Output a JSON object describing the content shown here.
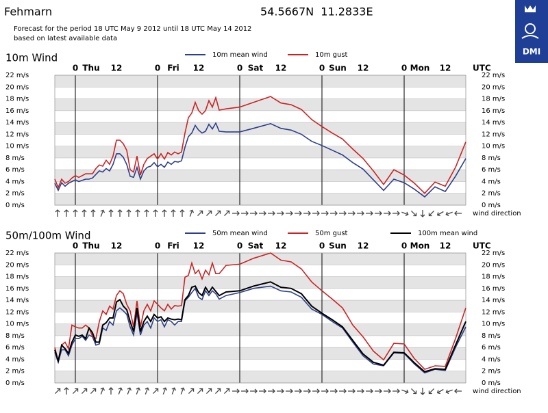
{
  "header": {
    "title": "Fehmarn",
    "coordinates": "54.5667N  11.2833E",
    "period": "Forecast for the period 18 UTC May 9 2012 until 18 UTC May 14 2012",
    "note": "based on latest available data",
    "logo": "DMI"
  },
  "chart_data": [
    {
      "type": "line",
      "title": "10m Wind",
      "x": [
        0,
        1,
        2,
        3,
        4,
        5,
        6,
        7,
        8,
        9,
        10,
        11,
        12,
        13,
        14,
        15,
        16,
        17,
        18,
        19,
        20,
        21,
        22,
        23,
        24,
        25,
        26,
        27,
        28,
        29,
        30,
        31,
        32,
        33,
        34,
        35,
        36,
        37,
        38,
        39,
        40,
        41,
        42,
        43,
        44,
        45,
        46,
        47,
        48,
        50,
        54,
        58,
        63,
        66,
        69,
        72,
        75,
        78,
        81,
        84,
        87,
        90,
        93,
        96,
        99,
        102,
        105,
        108,
        111,
        114,
        117,
        120
      ],
      "series": [
        {
          "name": "10m mean wind",
          "color": "#2b3f8a",
          "values": [
            3.7,
            2.5,
            3.8,
            3.2,
            3.7,
            4.0,
            4.3,
            4.0,
            4.2,
            4.4,
            4.4,
            4.6,
            5.2,
            5.8,
            5.6,
            6.2,
            5.8,
            6.9,
            8.7,
            8.7,
            8.1,
            6.9,
            4.9,
            4.7,
            6.4,
            4.4,
            5.8,
            6.4,
            6.6,
            7.2,
            6.5,
            6.9,
            6.4,
            7.3,
            6.9,
            7.4,
            7.3,
            7.5,
            9.8,
            11.6,
            12.2,
            13.5,
            12.7,
            12.2,
            12.5,
            13.7,
            12.9,
            13.9,
            12.5,
            12.4,
            12.4,
            13.0,
            13.8,
            13.0,
            12.7,
            12.0,
            10.8,
            10.1,
            9.3,
            8.5,
            7.2,
            6.1,
            4.3,
            2.5,
            4.4,
            3.8,
            2.7,
            1.4,
            3.1,
            2.3,
            4.9,
            7.9
          ]
        },
        {
          "name": "10m gust",
          "color": "#cc2222",
          "values": [
            4.4,
            3.0,
            4.4,
            3.7,
            4.0,
            4.6,
            5.0,
            4.7,
            5.0,
            5.3,
            5.3,
            5.3,
            6.2,
            6.8,
            6.6,
            7.6,
            6.9,
            8.3,
            11.0,
            11.0,
            10.4,
            9.3,
            6.0,
            5.6,
            8.3,
            5.1,
            6.9,
            7.9,
            8.3,
            8.7,
            7.8,
            8.7,
            7.8,
            8.9,
            8.5,
            9.0,
            8.7,
            9.0,
            12.2,
            14.8,
            15.6,
            17.4,
            16.0,
            15.4,
            16.0,
            17.7,
            16.6,
            18.2,
            16.1,
            16.3,
            16.6,
            17.4,
            18.4,
            17.3,
            17.0,
            16.2,
            14.5,
            13.3,
            12.2,
            11.2,
            9.5,
            7.9,
            5.8,
            3.5,
            6.0,
            5.1,
            3.7,
            2.0,
            3.9,
            3.2,
            6.4,
            10.7
          ]
        }
      ],
      "xlim": [
        0,
        120
      ],
      "xticks": [
        {
          "value": 6,
          "label": "0"
        },
        {
          "value": 18,
          "label": "12"
        },
        {
          "value": 30,
          "label": "0"
        },
        {
          "value": 42,
          "label": "12"
        },
        {
          "value": 54,
          "label": "0"
        },
        {
          "value": 66,
          "label": "12"
        },
        {
          "value": 78,
          "label": "0"
        },
        {
          "value": 90,
          "label": "12"
        },
        {
          "value": 102,
          "label": "0"
        },
        {
          "value": 114,
          "label": "12"
        }
      ],
      "day_labels": [
        {
          "value": 10.6,
          "label": "Thu"
        },
        {
          "value": 34.6,
          "label": "Fri"
        },
        {
          "value": 58.6,
          "label": "Sat"
        },
        {
          "value": 82.6,
          "label": "Sun"
        },
        {
          "value": 106.6,
          "label": "Mon"
        }
      ],
      "x_unit": "UTC",
      "ylim": [
        0,
        22
      ],
      "yticks": [
        {
          "value": 0,
          "label": "0 m/s"
        },
        {
          "value": 2,
          "label": "2 m/s"
        },
        {
          "value": 4,
          "label": "4 m/s"
        },
        {
          "value": 6,
          "label": "6 m/s"
        },
        {
          "value": 8,
          "label": "8 m/s"
        },
        {
          "value": 10,
          "label": "10 m/s"
        },
        {
          "value": 12,
          "label": "12 m/s"
        },
        {
          "value": 14,
          "label": "14 m/s"
        },
        {
          "value": 16,
          "label": "16 m/s"
        },
        {
          "value": 18,
          "label": "18 m/s"
        },
        {
          "value": 20,
          "label": "20 m/s"
        },
        {
          "value": 22,
          "label": "22 m/s"
        }
      ],
      "grid": true,
      "wind_direction": {
        "label": "wind direction",
        "values": [
          0,
          0,
          0,
          0,
          0,
          20,
          0,
          0,
          0,
          0,
          0,
          0,
          0,
          0,
          0,
          20,
          45,
          45,
          45,
          45,
          90,
          90,
          90,
          90,
          90,
          90,
          90,
          90,
          90,
          90,
          90,
          90,
          90,
          90,
          90,
          90,
          90,
          90,
          90,
          110,
          135,
          180,
          225,
          240,
          250,
          270
        ]
      }
    },
    {
      "type": "line",
      "title": "50m/100m Wind",
      "x": [
        0,
        1,
        2,
        3,
        4,
        5,
        6,
        7,
        8,
        9,
        10,
        11,
        12,
        13,
        14,
        15,
        16,
        17,
        18,
        19,
        20,
        21,
        22,
        23,
        24,
        25,
        26,
        27,
        28,
        29,
        30,
        31,
        32,
        33,
        34,
        35,
        36,
        37,
        38,
        39,
        40,
        41,
        42,
        43,
        44,
        45,
        46,
        47,
        48,
        50,
        54,
        58,
        63,
        66,
        69,
        72,
        75,
        78,
        81,
        84,
        87,
        90,
        93,
        96,
        99,
        102,
        105,
        108,
        111,
        114,
        117,
        120
      ],
      "series": [
        {
          "name": "50m mean wind",
          "color": "#2b3f8a",
          "values": [
            5.2,
            3.5,
            5.6,
            5.6,
            4.6,
            6.4,
            7.5,
            7.5,
            7.9,
            7.2,
            8.1,
            7.8,
            6.4,
            6.6,
            9.3,
            8.9,
            10.4,
            9.8,
            12.2,
            12.7,
            12.2,
            11.6,
            9.5,
            8.1,
            11.8,
            8.1,
            9.8,
            10.4,
            9.3,
            11.0,
            10.4,
            10.7,
            9.5,
            10.7,
            10.4,
            9.8,
            10.4,
            10.4,
            13.9,
            14.5,
            15.3,
            16.0,
            14.5,
            14.1,
            15.6,
            14.8,
            15.6,
            15.1,
            14.2,
            14.8,
            15.3,
            16.0,
            16.4,
            15.6,
            15.4,
            14.5,
            12.5,
            11.6,
            10.4,
            9.3,
            6.9,
            4.6,
            3.2,
            2.9,
            5.1,
            5.0,
            3.2,
            1.7,
            2.3,
            2.1,
            6.0,
            9.5
          ]
        },
        {
          "name": "50m gust",
          "color": "#cc2222",
          "values": [
            6.0,
            3.7,
            6.4,
            6.9,
            5.8,
            9.8,
            9.5,
            9.3,
            9.3,
            9.8,
            9.3,
            7.9,
            7.5,
            10.4,
            12.2,
            11.6,
            13.0,
            12.5,
            14.8,
            15.6,
            15.1,
            13.3,
            12.2,
            9.5,
            13.9,
            9.5,
            12.2,
            13.3,
            12.2,
            13.9,
            13.3,
            12.7,
            12.2,
            13.3,
            12.5,
            13.1,
            13.0,
            13.1,
            17.9,
            18.2,
            20.3,
            18.5,
            19.1,
            17.6,
            19.1,
            18.3,
            20.3,
            18.5,
            18.5,
            19.9,
            20.1,
            21.1,
            22.0,
            20.8,
            20.5,
            19.3,
            17.1,
            15.6,
            14.2,
            12.7,
            9.8,
            7.8,
            5.4,
            3.9,
            6.7,
            6.6,
            4.1,
            2.3,
            2.9,
            2.8,
            7.5,
            12.7
          ]
        },
        {
          "name": "100m mean wind",
          "color": "#000000",
          "values": [
            5.6,
            3.7,
            6.4,
            5.8,
            5.0,
            6.9,
            8.1,
            7.9,
            8.1,
            7.5,
            9.3,
            8.5,
            6.9,
            6.9,
            9.8,
            10.2,
            11.0,
            11.0,
            13.7,
            14.1,
            13.0,
            12.4,
            10.4,
            8.7,
            12.7,
            8.7,
            10.4,
            11.3,
            10.4,
            11.6,
            11.0,
            11.2,
            10.4,
            11.0,
            10.8,
            10.7,
            10.8,
            10.7,
            14.1,
            14.8,
            16.2,
            16.4,
            15.3,
            14.8,
            16.2,
            15.3,
            16.2,
            15.5,
            14.8,
            15.4,
            15.6,
            16.4,
            17.1,
            16.2,
            16.0,
            15.1,
            13.0,
            11.8,
            10.7,
            9.5,
            7.2,
            4.9,
            3.5,
            3.0,
            5.2,
            5.1,
            3.4,
            1.9,
            2.4,
            2.3,
            6.4,
            10.4
          ]
        }
      ],
      "xlim": [
        0,
        120
      ],
      "xticks": [
        {
          "value": 6,
          "label": "0"
        },
        {
          "value": 18,
          "label": "12"
        },
        {
          "value": 30,
          "label": "0"
        },
        {
          "value": 42,
          "label": "12"
        },
        {
          "value": 54,
          "label": "0"
        },
        {
          "value": 66,
          "label": "12"
        },
        {
          "value": 78,
          "label": "0"
        },
        {
          "value": 90,
          "label": "12"
        },
        {
          "value": 102,
          "label": "0"
        },
        {
          "value": 114,
          "label": "12"
        }
      ],
      "day_labels": [
        {
          "value": 10.6,
          "label": "Thu"
        },
        {
          "value": 34.6,
          "label": "Fri"
        },
        {
          "value": 58.6,
          "label": "Sat"
        },
        {
          "value": 82.6,
          "label": "Sun"
        },
        {
          "value": 106.6,
          "label": "Mon"
        }
      ],
      "x_unit": "UTC",
      "ylim": [
        0,
        22
      ],
      "yticks": [
        {
          "value": 0,
          "label": "0 m/s"
        },
        {
          "value": 2,
          "label": "2 m/s"
        },
        {
          "value": 4,
          "label": "4 m/s"
        },
        {
          "value": 6,
          "label": "6 m/s"
        },
        {
          "value": 8,
          "label": "8 m/s"
        },
        {
          "value": 10,
          "label": "10 m/s"
        },
        {
          "value": 12,
          "label": "12 m/s"
        },
        {
          "value": 14,
          "label": "14 m/s"
        },
        {
          "value": 16,
          "label": "16 m/s"
        },
        {
          "value": 18,
          "label": "18 m/s"
        },
        {
          "value": 20,
          "label": "20 m/s"
        },
        {
          "value": 22,
          "label": "22 m/s"
        }
      ],
      "grid": true,
      "wind_direction": {
        "label": "wind direction",
        "values": [
          45,
          0,
          45,
          45,
          45,
          20,
          0,
          20,
          20,
          20,
          20,
          45,
          20,
          20,
          20,
          45,
          45,
          45,
          45,
          45,
          90,
          90,
          90,
          90,
          90,
          90,
          90,
          90,
          90,
          90,
          90,
          90,
          90,
          90,
          90,
          90,
          90,
          90,
          90,
          110,
          135,
          180,
          225,
          240,
          250,
          270
        ]
      }
    }
  ]
}
